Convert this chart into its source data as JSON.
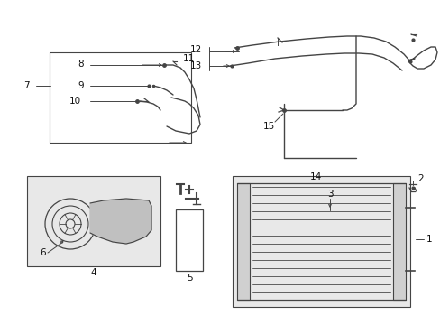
{
  "bg_color": "#ffffff",
  "lc": "#444444",
  "lc_light": "#888888",
  "gray_fill": "#d8d8d8",
  "gray_fill2": "#e8e8e8",
  "fig_width": 4.89,
  "fig_height": 3.6,
  "dpi": 100,
  "label_fontsize": 7.5,
  "label_color": "#111111"
}
